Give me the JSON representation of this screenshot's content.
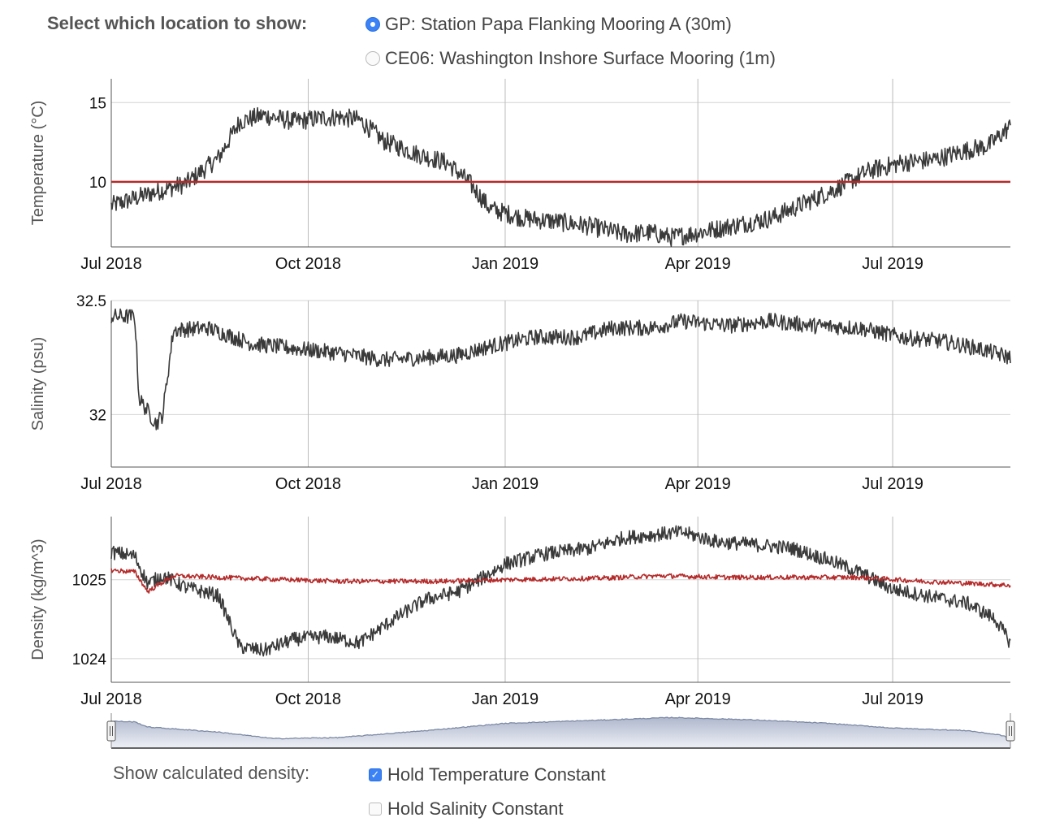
{
  "location": {
    "label": "Select which location to show:",
    "options": [
      {
        "label": "GP: Station Papa Flanking Mooring A (30m)",
        "selected": true
      },
      {
        "label": "CE06: Washington Inshore Surface Mooring (1m)",
        "selected": false
      }
    ]
  },
  "density_options": {
    "label": "Show calculated density:",
    "options": [
      {
        "label": "Hold Temperature Constant",
        "checked": true
      },
      {
        "label": "Hold Salinity Constant",
        "checked": false
      }
    ]
  },
  "colors": {
    "series": "#3a3a3a",
    "calculated": "#b52a2a",
    "grid": "#d4d4d4",
    "navigator_fill": "#c3c9d8",
    "navigator_line": "#7d8aa6"
  },
  "chart_data": [
    {
      "type": "line",
      "ylabel": "Temperature (°C)",
      "xlabel": "",
      "x_ticks": [
        "Jul 2018",
        "Oct 2018",
        "Jan 2019",
        "Apr 2019",
        "Jul 2019"
      ],
      "xlim": [
        "2018-07-01",
        "2019-08-25"
      ],
      "y_ticks": [
        10,
        15
      ],
      "ylim": [
        5.9,
        16.5
      ],
      "series": [
        {
          "color": "#3a3a3a",
          "noise": 0.6,
          "x": [
            "2018-07-01",
            "2018-07-20",
            "2018-08-05",
            "2018-08-20",
            "2018-08-30",
            "2018-09-10",
            "2018-09-25",
            "2018-10-05",
            "2018-10-15",
            "2018-10-25",
            "2018-11-05",
            "2018-11-20",
            "2018-12-05",
            "2018-12-15",
            "2018-12-25",
            "2019-01-10",
            "2019-01-25",
            "2019-02-10",
            "2019-02-25",
            "2019-03-10",
            "2019-03-20",
            "2019-04-05",
            "2019-04-20",
            "2019-05-05",
            "2019-05-20",
            "2019-06-05",
            "2019-06-20",
            "2019-07-05",
            "2019-07-20",
            "2019-08-05",
            "2019-08-15",
            "2019-08-25"
          ],
          "y": [
            8.5,
            9.3,
            9.9,
            11.5,
            13.8,
            14.2,
            13.8,
            14.0,
            14.1,
            13.9,
            12.6,
            11.8,
            11.2,
            10.0,
            8.3,
            7.7,
            7.5,
            7.2,
            6.7,
            6.8,
            6.5,
            6.9,
            7.3,
            7.7,
            8.6,
            9.6,
            10.7,
            11.2,
            11.4,
            12.0,
            12.3,
            13.5
          ]
        }
      ],
      "reference_lines": [
        {
          "y": 10,
          "color": "#b52a2a"
        }
      ]
    },
    {
      "type": "line",
      "ylabel": "Salinity (psu)",
      "xlabel": "",
      "x_ticks": [
        "Jul 2018",
        "Oct 2018",
        "Jan 2019",
        "Apr 2019",
        "Jul 2019"
      ],
      "xlim": [
        "2018-07-01",
        "2019-08-25"
      ],
      "y_ticks": [
        32,
        32.5
      ],
      "ylim": [
        31.77,
        32.5
      ],
      "series": [
        {
          "color": "#3a3a3a",
          "noise": 0.035,
          "x": [
            "2018-07-01",
            "2018-07-12",
            "2018-07-14",
            "2018-07-22",
            "2018-07-25",
            "2018-07-30",
            "2018-08-15",
            "2018-09-05",
            "2018-09-25",
            "2018-10-15",
            "2018-11-05",
            "2018-11-25",
            "2018-12-10",
            "2018-12-25",
            "2019-01-15",
            "2019-02-05",
            "2019-02-20",
            "2019-03-10",
            "2019-03-25",
            "2019-04-15",
            "2019-05-05",
            "2019-05-25",
            "2019-06-15",
            "2019-07-05",
            "2019-07-25",
            "2019-08-10",
            "2019-08-25"
          ],
          "y": [
            32.43,
            32.43,
            32.07,
            31.96,
            32.0,
            32.37,
            32.38,
            32.31,
            32.29,
            32.27,
            32.24,
            32.25,
            32.26,
            32.3,
            32.34,
            32.34,
            32.38,
            32.38,
            32.41,
            32.39,
            32.41,
            32.39,
            32.38,
            32.34,
            32.32,
            32.29,
            32.25
          ]
        }
      ]
    },
    {
      "type": "line",
      "ylabel": "Density (kg/m^3)",
      "xlabel": "",
      "x_ticks": [
        "Jul 2018",
        "Oct 2018",
        "Jan 2019",
        "Apr 2019",
        "Jul 2019"
      ],
      "xlim": [
        "2018-07-01",
        "2019-08-25"
      ],
      "y_ticks": [
        1024,
        1025
      ],
      "ylim": [
        1023.7,
        1025.8
      ],
      "series": [
        {
          "color": "#3a3a3a",
          "noise": 0.09,
          "x": [
            "2018-07-01",
            "2018-07-12",
            "2018-07-18",
            "2018-07-25",
            "2018-08-05",
            "2018-08-20",
            "2018-08-30",
            "2018-09-10",
            "2018-09-25",
            "2018-10-10",
            "2018-10-25",
            "2018-11-10",
            "2018-11-25",
            "2018-12-10",
            "2018-12-20",
            "2019-01-01",
            "2019-01-20",
            "2019-02-10",
            "2019-02-25",
            "2019-03-15",
            "2019-03-25",
            "2019-04-10",
            "2019-04-25",
            "2019-05-15",
            "2019-06-01",
            "2019-06-15",
            "2019-07-01",
            "2019-07-20",
            "2019-08-05",
            "2019-08-18",
            "2019-08-25"
          ],
          "y": [
            1025.35,
            1025.3,
            1024.95,
            1025.05,
            1024.9,
            1024.8,
            1024.15,
            1024.1,
            1024.25,
            1024.28,
            1024.2,
            1024.5,
            1024.75,
            1024.85,
            1025.0,
            1025.2,
            1025.33,
            1025.4,
            1025.53,
            1025.58,
            1025.6,
            1025.48,
            1025.45,
            1025.4,
            1025.25,
            1025.1,
            1024.88,
            1024.78,
            1024.7,
            1024.5,
            1024.2
          ]
        },
        {
          "color": "#b52a2a",
          "noise": 0.03,
          "x": [
            "2018-07-01",
            "2018-07-12",
            "2018-07-18",
            "2018-07-30",
            "2018-08-30",
            "2018-10-15",
            "2018-12-01",
            "2019-01-01",
            "2019-02-15",
            "2019-03-15",
            "2019-04-15",
            "2019-05-15",
            "2019-06-15",
            "2019-07-15",
            "2019-08-25"
          ],
          "y": [
            1025.12,
            1025.1,
            1024.85,
            1025.05,
            1025.02,
            1024.98,
            1024.98,
            1025.0,
            1025.02,
            1025.05,
            1025.03,
            1025.03,
            1025.03,
            1024.98,
            1024.93
          ]
        }
      ]
    }
  ],
  "navigator": {
    "x": [
      "2018-07-01",
      "2018-07-12",
      "2018-07-18",
      "2018-08-20",
      "2018-09-15",
      "2018-10-15",
      "2018-11-25",
      "2019-01-01",
      "2019-02-10",
      "2019-03-20",
      "2019-04-25",
      "2019-06-01",
      "2019-07-01",
      "2019-08-05",
      "2019-08-20",
      "2019-08-25"
    ],
    "y": [
      1025.35,
      1025.3,
      1024.95,
      1024.6,
      1024.15,
      1024.22,
      1024.7,
      1025.2,
      1025.4,
      1025.6,
      1025.45,
      1025.2,
      1024.88,
      1024.7,
      1024.4,
      1024.2
    ],
    "ylim": [
      1023.5,
      1025.9
    ]
  }
}
